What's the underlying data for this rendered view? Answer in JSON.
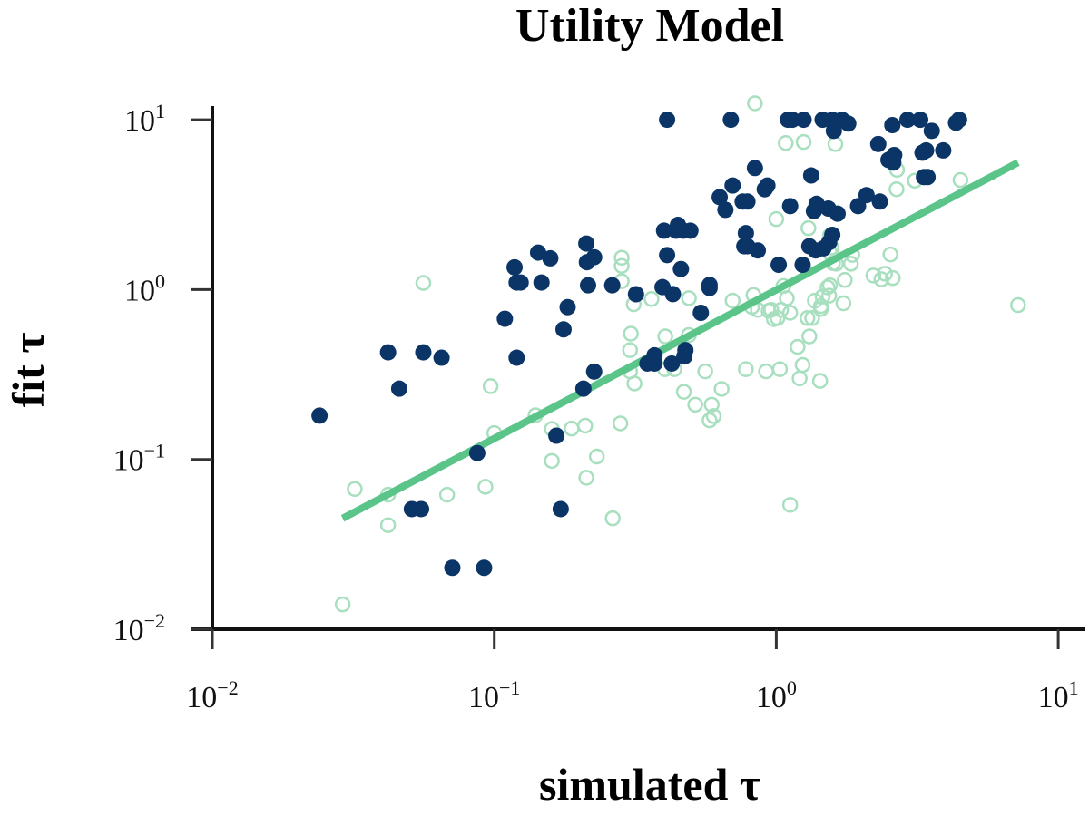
{
  "chart_data": {
    "type": "scatter",
    "title": "Utility Model",
    "xlabel": "simulated τ",
    "ylabel": "fit τ",
    "xscale": "log",
    "yscale": "log",
    "xlim": [
      0.01,
      10
    ],
    "ylim": [
      0.01,
      10
    ],
    "xticks": [
      {
        "base": "10",
        "exp": "−2",
        "value": 0.01
      },
      {
        "base": "10",
        "exp": "−1",
        "value": 0.1
      },
      {
        "base": "10",
        "exp": "0",
        "value": 1
      },
      {
        "base": "10",
        "exp": "1",
        "value": 10
      }
    ],
    "yticks": [
      {
        "base": "10",
        "exp": "−2",
        "value": 0.01
      },
      {
        "base": "10",
        "exp": "−1",
        "value": 0.1
      },
      {
        "base": "10",
        "exp": "0",
        "value": 1
      },
      {
        "base": "10",
        "exp": "1",
        "value": 10
      }
    ],
    "colors": {
      "filled": "#0b3566",
      "open": "#a8dfbf",
      "fit_line": "#5ac489"
    },
    "series": [
      {
        "name": "filled points",
        "style": "filled",
        "x": [
          0.024,
          0.042,
          0.046,
          0.056,
          0.065,
          0.051,
          0.055,
          0.071,
          0.092,
          0.087,
          0.109,
          0.118,
          0.12,
          0.12,
          0.124,
          0.143,
          0.147,
          0.158,
          0.166,
          0.172,
          0.176,
          0.182,
          0.207,
          0.212,
          0.213,
          0.215,
          0.226,
          0.226,
          0.262,
          0.318,
          0.349,
          0.37,
          0.37,
          0.395,
          0.41,
          0.41,
          0.4,
          0.426,
          0.43,
          0.441,
          0.448,
          0.459,
          0.468,
          0.472,
          0.496,
          0.476,
          0.54,
          0.58,
          0.58,
          0.63,
          0.66,
          0.69,
          0.7,
          0.76,
          0.77,
          0.78,
          0.79,
          0.79,
          0.84,
          0.86,
          0.91,
          0.93,
          1.02,
          1.12,
          1.14,
          1.24,
          1.25,
          1.31,
          1.33,
          1.36,
          1.38,
          1.39,
          1.46,
          1.47,
          1.53,
          1.54,
          1.58,
          1.58,
          1.65,
          1.71,
          1.95,
          2.09,
          2.3,
          2.33,
          2.5,
          2.58,
          2.62,
          2.92,
          3.24,
          3.34,
          3.4,
          3.44,
          3.56,
          3.91,
          4.34,
          4.45,
          1.6,
          1.1,
          1.8,
          2.6,
          3.3
        ],
        "y": [
          0.181,
          0.427,
          0.261,
          0.427,
          0.397,
          0.051,
          0.051,
          0.023,
          0.023,
          0.109,
          0.673,
          1.352,
          1.101,
          0.397,
          1.101,
          1.652,
          1.101,
          1.528,
          0.138,
          0.051,
          0.583,
          0.788,
          0.261,
          1.867,
          1.449,
          1.06,
          1.551,
          0.329,
          1.06,
          0.939,
          0.367,
          0.367,
          0.41,
          1.034,
          1.597,
          10.0,
          2.224,
          0.367,
          0.94,
          2.224,
          2.405,
          1.322,
          2.224,
          0.404,
          2.224,
          0.44,
          0.73,
          1.022,
          1.066,
          3.5,
          2.95,
          10.0,
          4.1,
          3.3,
          1.8,
          2.15,
          3.3,
          1.8,
          5.2,
          1.7,
          3.9,
          4.1,
          1.4,
          3.1,
          10.0,
          1.4,
          10.0,
          1.8,
          4.7,
          2.9,
          1.7,
          3.2,
          10.0,
          1.75,
          3.0,
          1.9,
          2.1,
          10.0,
          2.8,
          10.0,
          3.1,
          3.6,
          7.2,
          3.3,
          5.8,
          9.3,
          6.2,
          10.0,
          10.0,
          4.6,
          6.6,
          4.6,
          8.6,
          6.6,
          9.6,
          10.0,
          8.6,
          10.0,
          9.5,
          5.6,
          6.4
        ]
      },
      {
        "name": "open points",
        "style": "open",
        "x": [
          0.029,
          0.032,
          0.042,
          0.042,
          0.056,
          0.068,
          0.093,
          0.097,
          0.1,
          0.14,
          0.16,
          0.16,
          0.188,
          0.21,
          0.212,
          0.231,
          0.263,
          0.28,
          0.303,
          0.303,
          0.305,
          0.283,
          0.312,
          0.283,
          0.283,
          0.314,
          0.361,
          0.403,
          0.404,
          0.435,
          0.47,
          0.49,
          0.49,
          0.516,
          0.56,
          0.58,
          0.59,
          0.6,
          0.64,
          0.7,
          0.78,
          0.82,
          0.83,
          0.86,
          0.92,
          0.94,
          0.96,
          0.98,
          1.01,
          1.03,
          1.04,
          1.06,
          1.09,
          1.12,
          1.12,
          1.19,
          1.21,
          1.24,
          1.29,
          1.31,
          1.34,
          1.37,
          1.43,
          1.44,
          1.44,
          1.46,
          1.52,
          1.54,
          1.55,
          1.55,
          1.56,
          1.57,
          1.59,
          1.63,
          1.73,
          1.75,
          1.84,
          1.86,
          2.21,
          2.36,
          2.43,
          2.54,
          2.59,
          2.67,
          2.68,
          3.1,
          4.5,
          7.2,
          1.0,
          1.3,
          0.84,
          1.08,
          1.25,
          1.62
        ],
        "y": [
          0.014,
          0.067,
          0.041,
          0.062,
          1.095,
          0.062,
          0.069,
          0.27,
          0.143,
          0.182,
          0.151,
          0.098,
          0.152,
          0.158,
          0.078,
          0.104,
          0.045,
          0.163,
          0.33,
          0.44,
          0.55,
          1.38,
          0.82,
          1.12,
          1.54,
          0.28,
          0.88,
          0.34,
          0.53,
          0.34,
          0.25,
          0.54,
          0.89,
          0.21,
          0.33,
          0.17,
          0.21,
          0.18,
          0.26,
          0.86,
          0.34,
          0.79,
          0.93,
          0.76,
          0.33,
          0.75,
          0.76,
          0.67,
          0.68,
          0.34,
          0.76,
          1.05,
          0.89,
          0.73,
          0.054,
          0.46,
          0.3,
          0.36,
          0.68,
          0.53,
          0.68,
          0.86,
          0.29,
          0.77,
          0.8,
          0.91,
          1.03,
          0.92,
          1.06,
          2.08,
          1.62,
          1.77,
          1.43,
          1.42,
          0.83,
          1.14,
          1.42,
          1.6,
          1.21,
          1.15,
          1.24,
          1.61,
          1.17,
          3.9,
          5.07,
          4.38,
          4.42,
          0.81,
          2.6,
          2.3,
          12.5,
          7.3,
          7.4,
          7.2
        ]
      }
    ],
    "fit_line": {
      "x": [
        0.029,
        7.2
      ],
      "y": [
        0.045,
        5.6
      ]
    }
  }
}
